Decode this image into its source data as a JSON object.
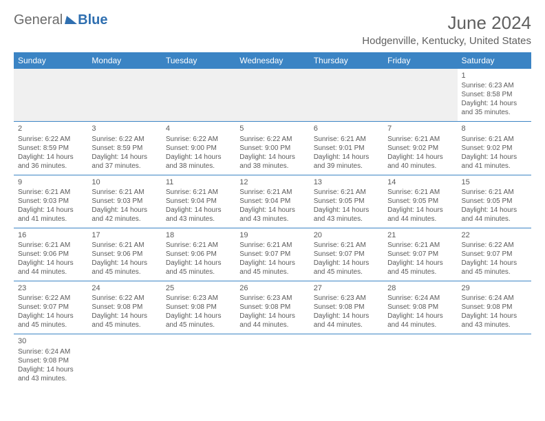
{
  "logo": {
    "part1": "General",
    "part2": "Blue"
  },
  "title": "June 2024",
  "location": "Hodgenville, Kentucky, United States",
  "colors": {
    "header_bg": "#3b84c4",
    "header_text": "#ffffff",
    "rule": "#3b84c4",
    "body_text": "#5a5a5a"
  },
  "day_headers": [
    "Sunday",
    "Monday",
    "Tuesday",
    "Wednesday",
    "Thursday",
    "Friday",
    "Saturday"
  ],
  "weeks": [
    [
      null,
      null,
      null,
      null,
      null,
      null,
      {
        "n": "1",
        "sr": "Sunrise: 6:23 AM",
        "ss": "Sunset: 8:58 PM",
        "d1": "Daylight: 14 hours",
        "d2": "and 35 minutes."
      }
    ],
    [
      {
        "n": "2",
        "sr": "Sunrise: 6:22 AM",
        "ss": "Sunset: 8:59 PM",
        "d1": "Daylight: 14 hours",
        "d2": "and 36 minutes."
      },
      {
        "n": "3",
        "sr": "Sunrise: 6:22 AM",
        "ss": "Sunset: 8:59 PM",
        "d1": "Daylight: 14 hours",
        "d2": "and 37 minutes."
      },
      {
        "n": "4",
        "sr": "Sunrise: 6:22 AM",
        "ss": "Sunset: 9:00 PM",
        "d1": "Daylight: 14 hours",
        "d2": "and 38 minutes."
      },
      {
        "n": "5",
        "sr": "Sunrise: 6:22 AM",
        "ss": "Sunset: 9:00 PM",
        "d1": "Daylight: 14 hours",
        "d2": "and 38 minutes."
      },
      {
        "n": "6",
        "sr": "Sunrise: 6:21 AM",
        "ss": "Sunset: 9:01 PM",
        "d1": "Daylight: 14 hours",
        "d2": "and 39 minutes."
      },
      {
        "n": "7",
        "sr": "Sunrise: 6:21 AM",
        "ss": "Sunset: 9:02 PM",
        "d1": "Daylight: 14 hours",
        "d2": "and 40 minutes."
      },
      {
        "n": "8",
        "sr": "Sunrise: 6:21 AM",
        "ss": "Sunset: 9:02 PM",
        "d1": "Daylight: 14 hours",
        "d2": "and 41 minutes."
      }
    ],
    [
      {
        "n": "9",
        "sr": "Sunrise: 6:21 AM",
        "ss": "Sunset: 9:03 PM",
        "d1": "Daylight: 14 hours",
        "d2": "and 41 minutes."
      },
      {
        "n": "10",
        "sr": "Sunrise: 6:21 AM",
        "ss": "Sunset: 9:03 PM",
        "d1": "Daylight: 14 hours",
        "d2": "and 42 minutes."
      },
      {
        "n": "11",
        "sr": "Sunrise: 6:21 AM",
        "ss": "Sunset: 9:04 PM",
        "d1": "Daylight: 14 hours",
        "d2": "and 43 minutes."
      },
      {
        "n": "12",
        "sr": "Sunrise: 6:21 AM",
        "ss": "Sunset: 9:04 PM",
        "d1": "Daylight: 14 hours",
        "d2": "and 43 minutes."
      },
      {
        "n": "13",
        "sr": "Sunrise: 6:21 AM",
        "ss": "Sunset: 9:05 PM",
        "d1": "Daylight: 14 hours",
        "d2": "and 43 minutes."
      },
      {
        "n": "14",
        "sr": "Sunrise: 6:21 AM",
        "ss": "Sunset: 9:05 PM",
        "d1": "Daylight: 14 hours",
        "d2": "and 44 minutes."
      },
      {
        "n": "15",
        "sr": "Sunrise: 6:21 AM",
        "ss": "Sunset: 9:05 PM",
        "d1": "Daylight: 14 hours",
        "d2": "and 44 minutes."
      }
    ],
    [
      {
        "n": "16",
        "sr": "Sunrise: 6:21 AM",
        "ss": "Sunset: 9:06 PM",
        "d1": "Daylight: 14 hours",
        "d2": "and 44 minutes."
      },
      {
        "n": "17",
        "sr": "Sunrise: 6:21 AM",
        "ss": "Sunset: 9:06 PM",
        "d1": "Daylight: 14 hours",
        "d2": "and 45 minutes."
      },
      {
        "n": "18",
        "sr": "Sunrise: 6:21 AM",
        "ss": "Sunset: 9:06 PM",
        "d1": "Daylight: 14 hours",
        "d2": "and 45 minutes."
      },
      {
        "n": "19",
        "sr": "Sunrise: 6:21 AM",
        "ss": "Sunset: 9:07 PM",
        "d1": "Daylight: 14 hours",
        "d2": "and 45 minutes."
      },
      {
        "n": "20",
        "sr": "Sunrise: 6:21 AM",
        "ss": "Sunset: 9:07 PM",
        "d1": "Daylight: 14 hours",
        "d2": "and 45 minutes."
      },
      {
        "n": "21",
        "sr": "Sunrise: 6:21 AM",
        "ss": "Sunset: 9:07 PM",
        "d1": "Daylight: 14 hours",
        "d2": "and 45 minutes."
      },
      {
        "n": "22",
        "sr": "Sunrise: 6:22 AM",
        "ss": "Sunset: 9:07 PM",
        "d1": "Daylight: 14 hours",
        "d2": "and 45 minutes."
      }
    ],
    [
      {
        "n": "23",
        "sr": "Sunrise: 6:22 AM",
        "ss": "Sunset: 9:07 PM",
        "d1": "Daylight: 14 hours",
        "d2": "and 45 minutes."
      },
      {
        "n": "24",
        "sr": "Sunrise: 6:22 AM",
        "ss": "Sunset: 9:08 PM",
        "d1": "Daylight: 14 hours",
        "d2": "and 45 minutes."
      },
      {
        "n": "25",
        "sr": "Sunrise: 6:23 AM",
        "ss": "Sunset: 9:08 PM",
        "d1": "Daylight: 14 hours",
        "d2": "and 45 minutes."
      },
      {
        "n": "26",
        "sr": "Sunrise: 6:23 AM",
        "ss": "Sunset: 9:08 PM",
        "d1": "Daylight: 14 hours",
        "d2": "and 44 minutes."
      },
      {
        "n": "27",
        "sr": "Sunrise: 6:23 AM",
        "ss": "Sunset: 9:08 PM",
        "d1": "Daylight: 14 hours",
        "d2": "and 44 minutes."
      },
      {
        "n": "28",
        "sr": "Sunrise: 6:24 AM",
        "ss": "Sunset: 9:08 PM",
        "d1": "Daylight: 14 hours",
        "d2": "and 44 minutes."
      },
      {
        "n": "29",
        "sr": "Sunrise: 6:24 AM",
        "ss": "Sunset: 9:08 PM",
        "d1": "Daylight: 14 hours",
        "d2": "and 43 minutes."
      }
    ],
    [
      {
        "n": "30",
        "sr": "Sunrise: 6:24 AM",
        "ss": "Sunset: 9:08 PM",
        "d1": "Daylight: 14 hours",
        "d2": "and 43 minutes."
      },
      null,
      null,
      null,
      null,
      null,
      null
    ]
  ]
}
